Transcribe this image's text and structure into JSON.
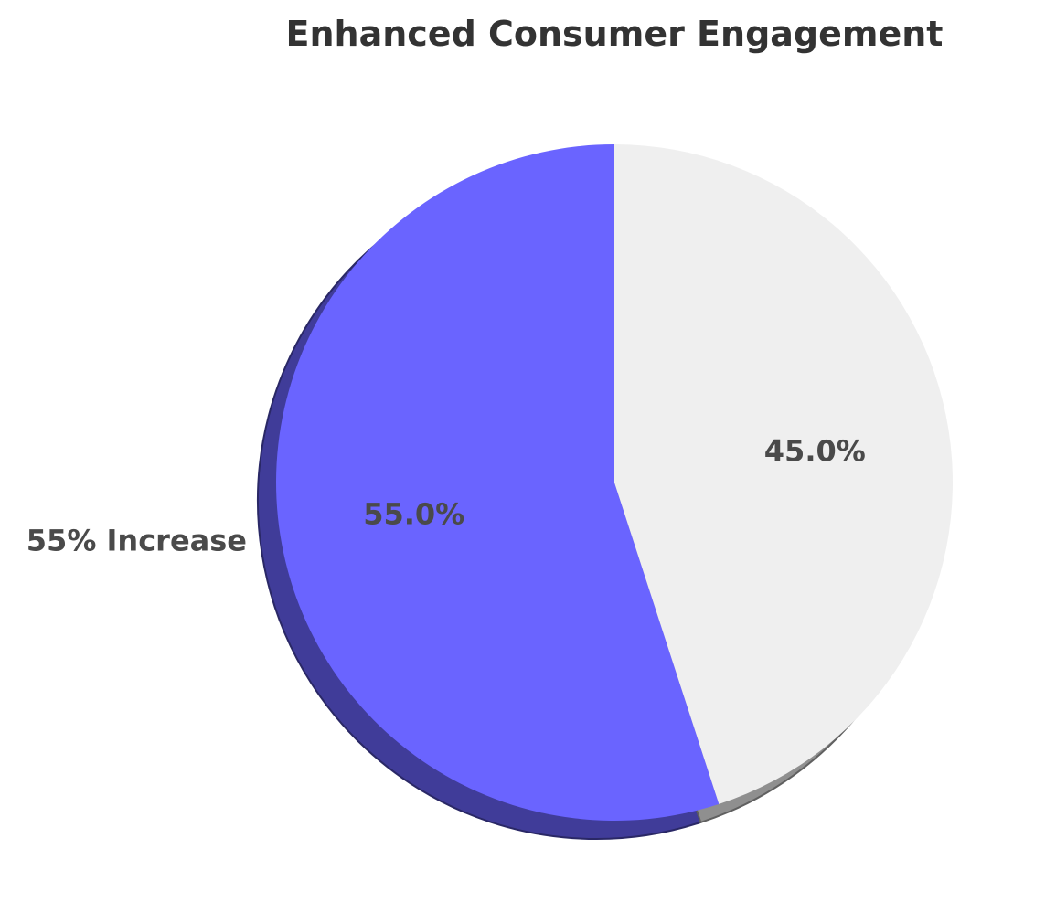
{
  "chart_data": {
    "type": "pie",
    "title": "Enhanced Consumer Engagement",
    "start_angle_deg": 90,
    "shadow": true,
    "slices": [
      {
        "label": "55% Increase",
        "value": 55,
        "pct_label": "55.0%",
        "color": "#6a64ff"
      },
      {
        "label": "",
        "value": 45,
        "pct_label": "45.0%",
        "color": "#efefef"
      }
    ]
  }
}
